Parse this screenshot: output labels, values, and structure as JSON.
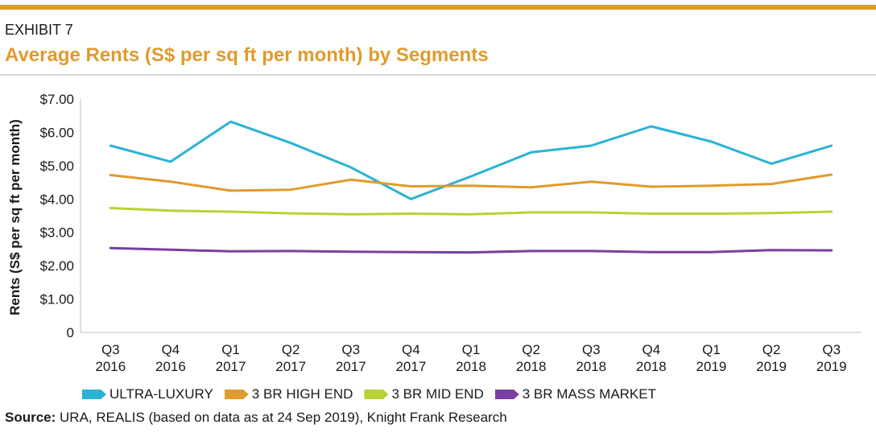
{
  "header": {
    "exhibit": "EXHIBIT 7",
    "title": "Average Rents (S$ per sq ft per month) by Segments"
  },
  "colors": {
    "accent": "#e09b2d",
    "ultra_luxury": "#2bb3d3",
    "high_end": "#e09b2d",
    "mid_end": "#b7d334",
    "mass_market": "#7a3fa0"
  },
  "chart_data": {
    "type": "line",
    "ylabel": "Rents (S$ per sq ft per month)",
    "ylim": [
      0,
      7
    ],
    "yticks": [
      "0",
      "$1.00",
      "$2.00",
      "$3.00",
      "$4.00",
      "$5.00",
      "$6.00",
      "$7.00"
    ],
    "categories": [
      [
        "Q3",
        "2016"
      ],
      [
        "Q4",
        "2016"
      ],
      [
        "Q1",
        "2017"
      ],
      [
        "Q2",
        "2017"
      ],
      [
        "Q3",
        "2017"
      ],
      [
        "Q4",
        "2017"
      ],
      [
        "Q1",
        "2018"
      ],
      [
        "Q2",
        "2018"
      ],
      [
        "Q3",
        "2018"
      ],
      [
        "Q4",
        "2018"
      ],
      [
        "Q1",
        "2019"
      ],
      [
        "Q2",
        "2019"
      ],
      [
        "Q3",
        "2019"
      ]
    ],
    "grid": false,
    "legend_position": "bottom",
    "series": [
      {
        "name": "ULTRA-LUXURY",
        "color_key": "ultra_luxury",
        "values": [
          5.6,
          5.12,
          6.32,
          5.68,
          4.95,
          4.0,
          4.68,
          5.4,
          5.6,
          6.18,
          5.72,
          5.06,
          5.6
        ]
      },
      {
        "name": "3 BR HIGH END",
        "color_key": "high_end",
        "values": [
          4.72,
          4.52,
          4.25,
          4.28,
          4.58,
          4.38,
          4.4,
          4.35,
          4.52,
          4.37,
          4.4,
          4.45,
          4.73
        ]
      },
      {
        "name": "3 BR MID END",
        "color_key": "mid_end",
        "values": [
          3.73,
          3.65,
          3.62,
          3.57,
          3.54,
          3.56,
          3.54,
          3.6,
          3.6,
          3.56,
          3.56,
          3.58,
          3.62
        ]
      },
      {
        "name": "3 BR MASS MARKET",
        "color_key": "mass_market",
        "values": [
          2.53,
          2.48,
          2.43,
          2.44,
          2.42,
          2.41,
          2.4,
          2.44,
          2.44,
          2.41,
          2.41,
          2.47,
          2.46
        ]
      }
    ]
  },
  "source": {
    "label": "Source:",
    "text": " URA, REALIS (based on data as at 24 Sep 2019), Knight Frank Research"
  }
}
